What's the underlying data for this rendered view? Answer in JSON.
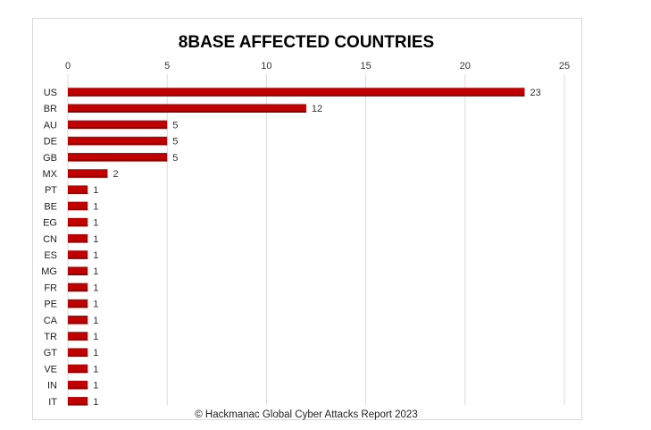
{
  "chart_data": {
    "type": "bar",
    "orientation": "horizontal",
    "title": "8BASE AFFECTED COUNTRIES",
    "footer": "© Hackmanac Global Cyber Attacks Report 2023",
    "categories": [
      "US",
      "BR",
      "AU",
      "DE",
      "GB",
      "MX",
      "PT",
      "BE",
      "EG",
      "CN",
      "ES",
      "MG",
      "FR",
      "PE",
      "CA",
      "TR",
      "GT",
      "VE",
      "IN",
      "IT"
    ],
    "values": [
      23,
      12,
      5,
      5,
      5,
      2,
      1,
      1,
      1,
      1,
      1,
      1,
      1,
      1,
      1,
      1,
      1,
      1,
      1,
      1
    ],
    "xlim": [
      0,
      25
    ],
    "xticks": [
      0,
      5,
      10,
      15,
      20,
      25
    ],
    "x_axis_position": "top",
    "grid": true,
    "data_labels": true,
    "bar_color": "#c00000",
    "xlabel": "",
    "ylabel": ""
  }
}
